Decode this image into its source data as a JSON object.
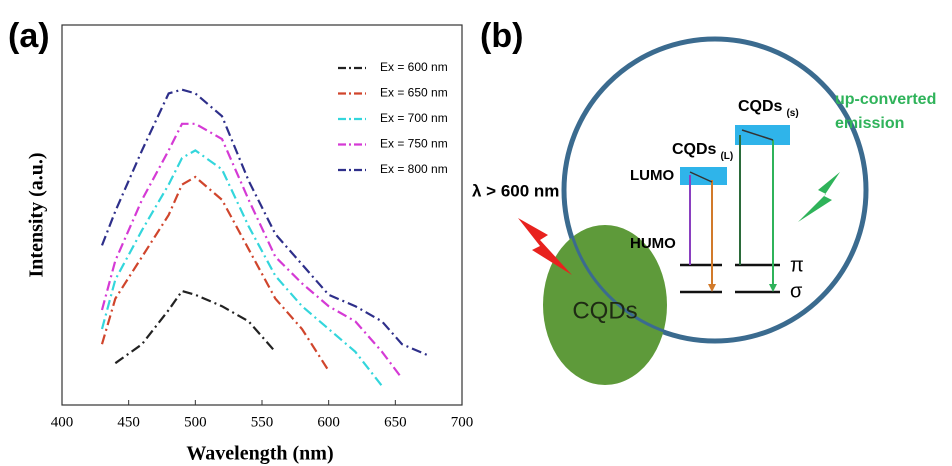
{
  "chart_data": {
    "type": "line",
    "panel_label": "(a)",
    "xlabel": "Wavelength (nm)",
    "ylabel": "Intensity (a.u.)",
    "x": [
      430,
      440,
      460,
      480,
      490,
      500,
      520,
      540,
      560,
      580,
      600,
      620,
      640,
      655,
      675
    ],
    "series": [
      {
        "name": "Ex = 600 nm",
        "color": "#222222",
        "values": [
          null,
          11,
          16,
          25,
          30,
          29,
          26,
          22,
          14,
          null,
          null,
          null,
          null,
          null,
          null
        ]
      },
      {
        "name": "Ex = 650 nm",
        "color": "#d0452c",
        "values": [
          16,
          28,
          39,
          50,
          58,
          60,
          54,
          41,
          28,
          20,
          9,
          null,
          null,
          null,
          null
        ]
      },
      {
        "name": "Ex = 700 nm",
        "color": "#33d6dc",
        "values": [
          20,
          33,
          46,
          58,
          65,
          67,
          62,
          47,
          34,
          26,
          20,
          14,
          5,
          null,
          null
        ]
      },
      {
        "name": "Ex = 750 nm",
        "color": "#d53ad5",
        "values": [
          25,
          38,
          54,
          67,
          74,
          74,
          70,
          54,
          39,
          32,
          26,
          22,
          14,
          7,
          null
        ]
      },
      {
        "name": "Ex = 800 nm",
        "color": "#2e2f8a",
        "values": [
          42,
          51,
          67,
          82,
          83,
          82,
          76,
          59,
          45,
          37,
          29,
          26,
          22,
          16,
          13
        ]
      }
    ],
    "xlim": [
      400,
      700
    ],
    "xticks": [
      400,
      450,
      500,
      550,
      600,
      650,
      700
    ],
    "ylim": [
      0,
      100
    ],
    "legend": "upper right"
  },
  "diagram": {
    "panel_label": "(b)",
    "excitation": "λ > 600 nm",
    "particle": "CQDs",
    "lumo": "LUMO",
    "humo": "HUMO",
    "cqd_l": {
      "main": "CQDs",
      "sub": "(L)"
    },
    "cqd_s": {
      "main": "CQDs",
      "sub": "(s)"
    },
    "emission": [
      "up-converted",
      "emission"
    ],
    "pi": "π",
    "sigma": "σ"
  }
}
